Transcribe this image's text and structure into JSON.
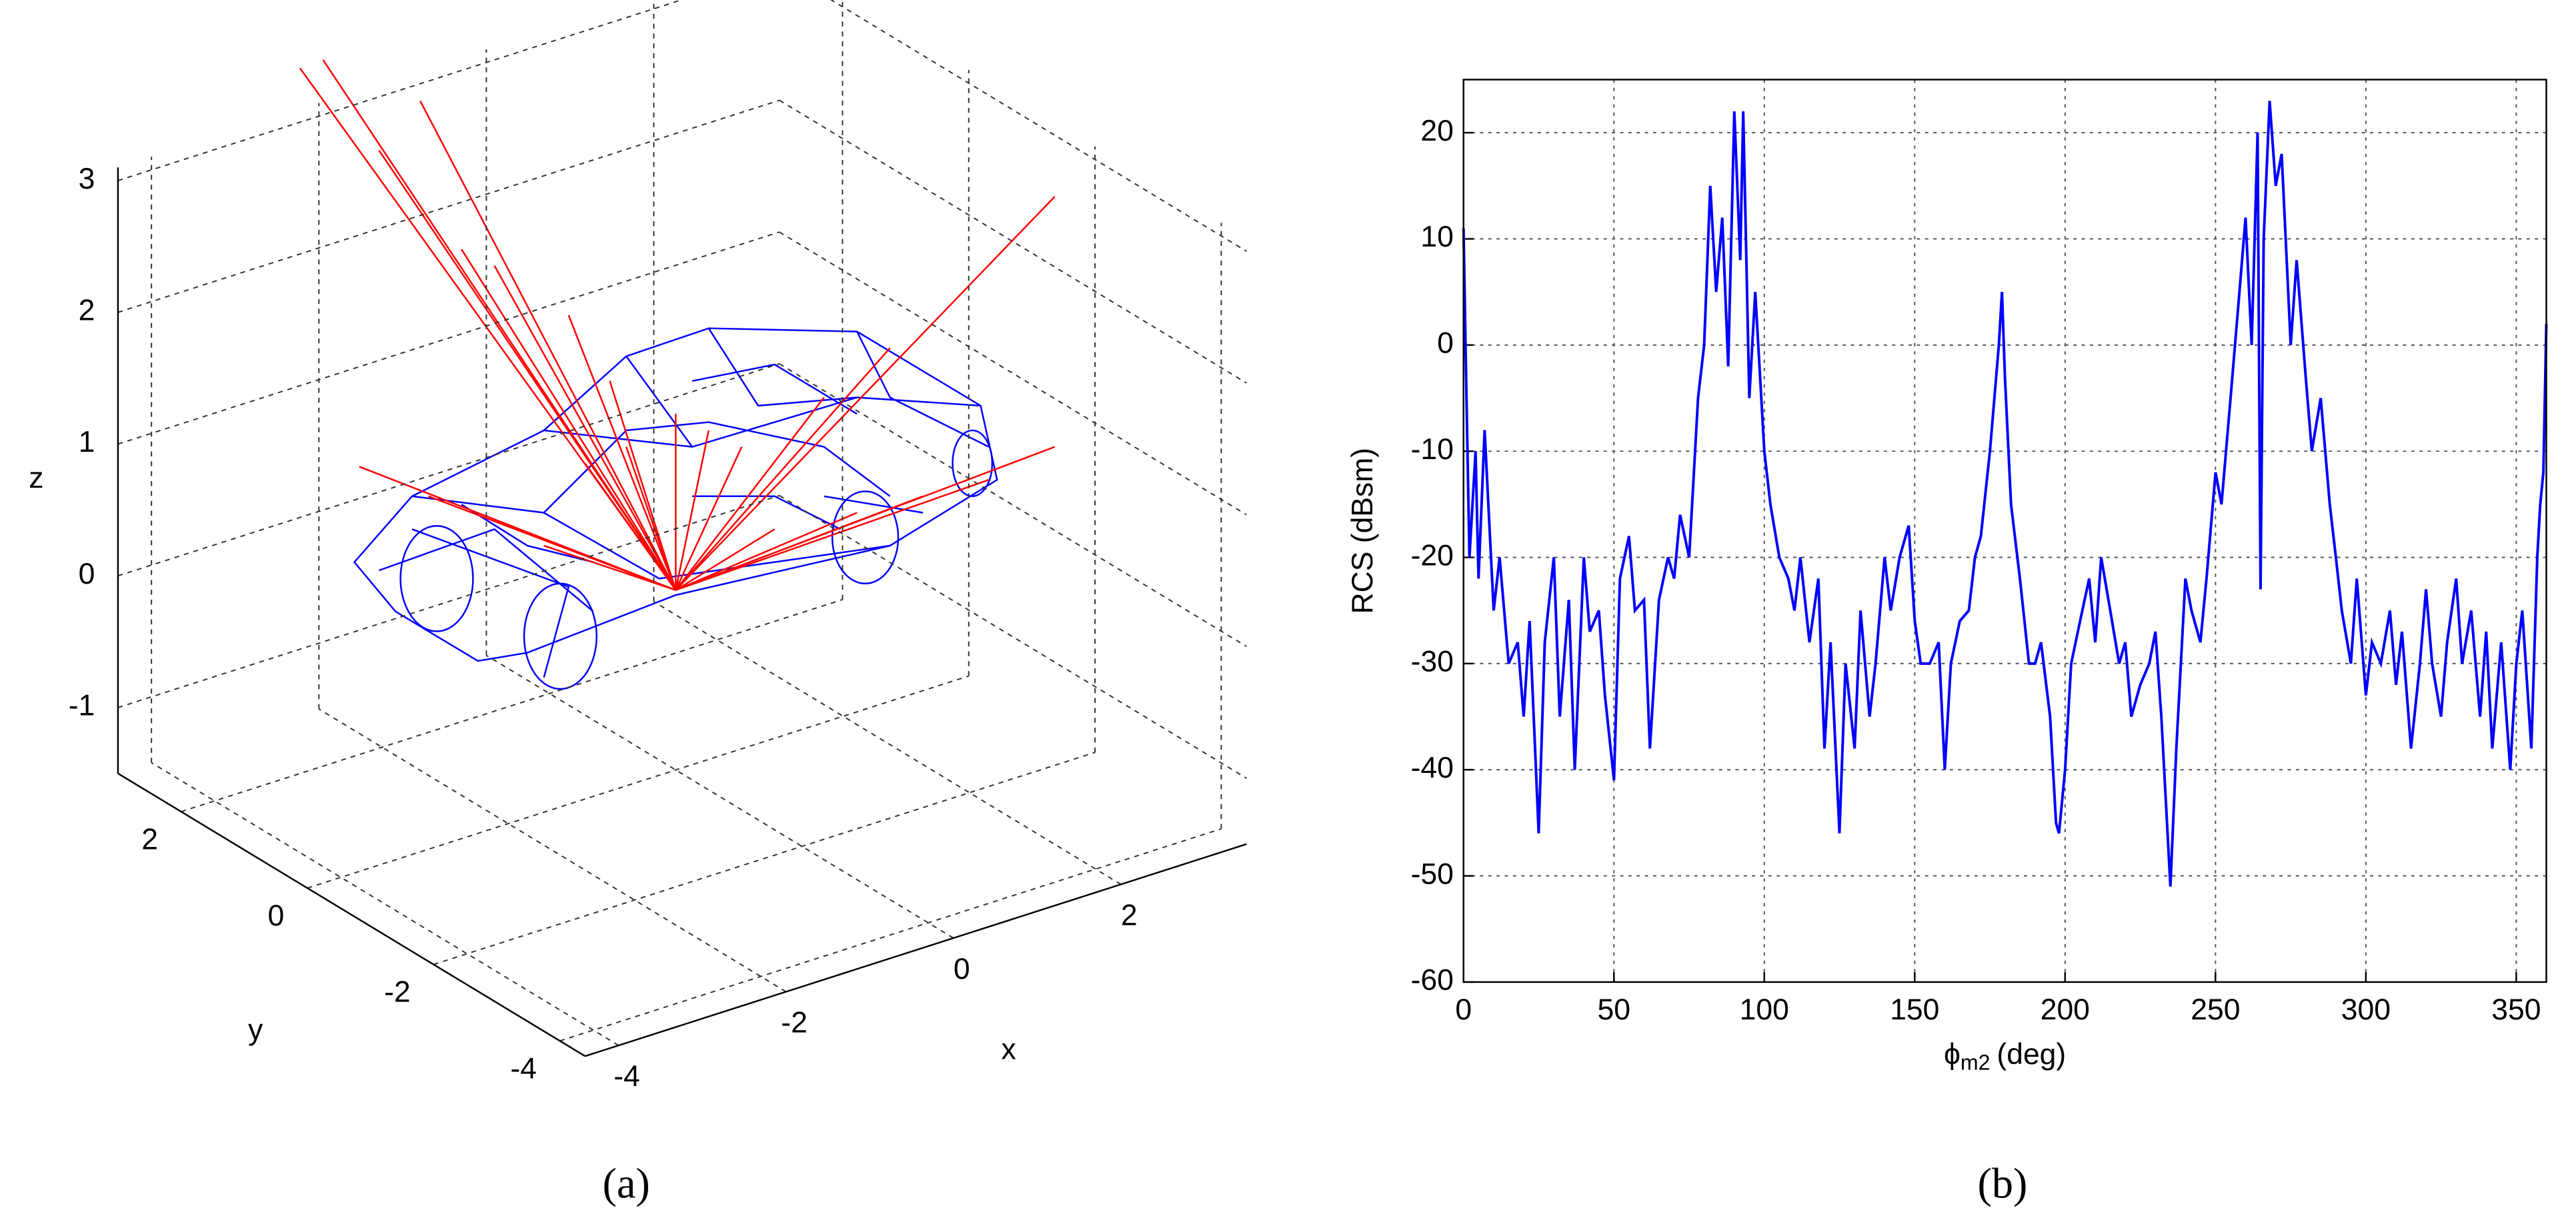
{
  "chart_data": [
    {
      "type": "3d-wireframe",
      "panel_label": "(a)",
      "xlabel": "x",
      "ylabel": "y",
      "zlabel": "z",
      "xlim": [
        -4.4,
        3.5
      ],
      "ylim": [
        -4.4,
        3
      ],
      "zlim": [
        -1.5,
        3.1
      ],
      "xticks": [
        -4,
        -2,
        0,
        2
      ],
      "yticks": [
        -4,
        -2,
        0,
        2
      ],
      "zticks": [
        -1,
        0,
        1,
        2,
        3
      ]
    },
    {
      "type": "line",
      "panel_label": "(b)",
      "ylabel": "RCS (dBsm)",
      "xlabel": {
        "symbol": "ϕ",
        "subscript": "m2",
        "unit": "(deg)"
      },
      "color": "#0000ff",
      "grid": true,
      "xlim": [
        0,
        360
      ],
      "ylim": [
        -60,
        25
      ],
      "xticks": [
        0,
        50,
        100,
        150,
        200,
        250,
        300,
        350
      ],
      "yticks": [
        -60,
        -50,
        -40,
        -30,
        -20,
        -10,
        0,
        10,
        20
      ],
      "x": [
        0,
        1,
        2,
        4,
        5,
        7,
        10,
        12,
        15,
        18,
        20,
        22,
        25,
        27,
        30,
        32,
        35,
        37,
        40,
        42,
        45,
        47,
        50,
        52,
        55,
        57,
        60,
        62,
        65,
        68,
        70,
        72,
        75,
        78,
        80,
        82,
        84,
        86,
        88,
        90,
        92,
        93,
        95,
        97,
        100,
        102,
        105,
        108,
        110,
        112,
        115,
        118,
        120,
        122,
        125,
        127,
        130,
        132,
        135,
        137,
        140,
        142,
        145,
        148,
        150,
        152,
        155,
        158,
        160,
        162,
        165,
        168,
        170,
        172,
        175,
        178,
        179,
        180,
        182,
        185,
        188,
        190,
        192,
        195,
        197,
        198,
        200,
        202,
        205,
        208,
        210,
        212,
        215,
        218,
        220,
        222,
        225,
        228,
        230,
        232,
        235,
        237,
        240,
        242,
        245,
        247,
        250,
        252,
        255,
        258,
        260,
        262,
        264,
        265,
        266,
        268,
        270,
        272,
        275,
        277,
        280,
        282,
        285,
        288,
        290,
        292,
        295,
        297,
        300,
        302,
        305,
        308,
        310,
        312,
        315,
        318,
        320,
        322,
        325,
        327,
        330,
        332,
        335,
        338,
        340,
        342,
        345,
        348,
        350,
        352,
        355,
        357,
        358,
        359,
        360
      ],
      "values": [
        11,
        -5,
        -20,
        -10,
        -22,
        -8,
        -25,
        -20,
        -30,
        -28,
        -35,
        -26,
        -46,
        -28,
        -20,
        -35,
        -24,
        -40,
        -20,
        -27,
        -25,
        -33,
        -41,
        -22,
        -18,
        -25,
        -24,
        -38,
        -24,
        -20,
        -22,
        -16,
        -20,
        -5,
        0,
        15,
        5,
        12,
        -2,
        22,
        8,
        22,
        -5,
        5,
        -10,
        -15,
        -20,
        -22,
        -25,
        -20,
        -28,
        -22,
        -38,
        -28,
        -46,
        -30,
        -38,
        -25,
        -35,
        -30,
        -20,
        -25,
        -20,
        -17,
        -26,
        -30,
        -30,
        -28,
        -40,
        -30,
        -26,
        -25,
        -20,
        -18,
        -10,
        0,
        5,
        -3,
        -15,
        -22,
        -30,
        -30,
        -28,
        -35,
        -45,
        -46,
        -40,
        -30,
        -26,
        -22,
        -28,
        -20,
        -25,
        -30,
        -28,
        -35,
        -32,
        -30,
        -27,
        -35,
        -51,
        -38,
        -22,
        -25,
        -28,
        -22,
        -12,
        -15,
        -5,
        5,
        12,
        0,
        20,
        -23,
        10,
        23,
        15,
        18,
        0,
        8,
        -3,
        -10,
        -5,
        -15,
        -20,
        -25,
        -30,
        -22,
        -33,
        -28,
        -30,
        -25,
        -32,
        -27,
        -38,
        -30,
        -23,
        -30,
        -35,
        -28,
        -22,
        -30,
        -25,
        -35,
        -27,
        -38,
        -28,
        -40,
        -30,
        -25,
        -38,
        -20,
        -15,
        -12,
        2
      ]
    }
  ]
}
